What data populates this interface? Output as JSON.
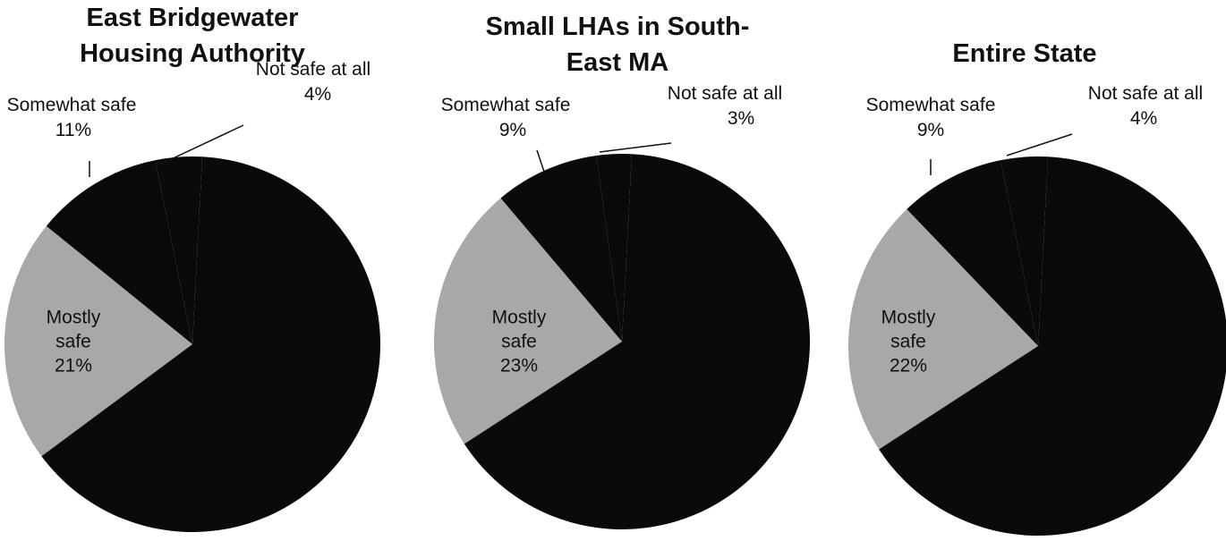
{
  "chart_data": [
    {
      "type": "pie",
      "title": "East Bridgewater Housing Authority",
      "categories": [
        "Not safe at all",
        "Somewhat safe",
        "Mostly safe",
        null
      ],
      "values": [
        4,
        11,
        21,
        64
      ],
      "value_labels": [
        "4%",
        "11%",
        "21%",
        null
      ],
      "colors": [
        "#0a0a0a",
        "#0a0a0a",
        "#a8a8a8",
        "#0a0a0a"
      ]
    },
    {
      "type": "pie",
      "title": "Small LHAs in  South-East MA",
      "categories": [
        "Not safe at all",
        "Somewhat safe",
        "Mostly safe",
        null
      ],
      "values": [
        3,
        9,
        23,
        65
      ],
      "value_labels": [
        "3%",
        "9%",
        "23%",
        null
      ],
      "colors": [
        "#0a0a0a",
        "#0a0a0a",
        "#a8a8a8",
        "#0a0a0a"
      ]
    },
    {
      "type": "pie",
      "title": "Entire State",
      "categories": [
        "Not safe at all",
        "Somewhat safe",
        "Mostly safe",
        null
      ],
      "values": [
        4,
        9,
        22,
        65
      ],
      "value_labels": [
        "4%",
        "9%",
        "22%",
        null
      ],
      "colors": [
        "#0a0a0a",
        "#0a0a0a",
        "#a8a8a8",
        "#0a0a0a"
      ]
    }
  ]
}
